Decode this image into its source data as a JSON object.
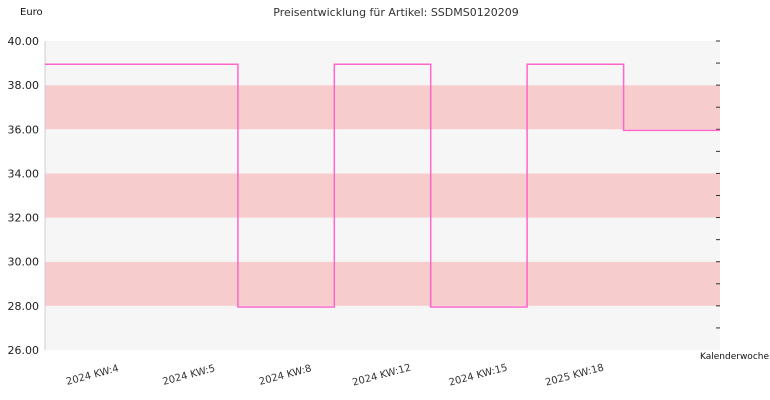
{
  "chart_data": {
    "type": "line",
    "step": true,
    "title": "Preisentwicklung für Artikel: SSDMS0120209",
    "ylabel": "Euro",
    "xlabel": "Kalenderwoche",
    "ylim": [
      26,
      40
    ],
    "yticks": [
      26,
      28,
      30,
      32,
      34,
      36,
      38,
      40
    ],
    "ytick_labels": [
      "26.00",
      "28.00",
      "30.00",
      "32.00",
      "34.00",
      "36.00",
      "38.00",
      "40.00"
    ],
    "xlim": [
      0,
      7
    ],
    "xticks": [
      {
        "label": "2024 KW:4",
        "x": 0.5
      },
      {
        "label": "2024 KW:5",
        "x": 1.5
      },
      {
        "label": "2024 KW:8",
        "x": 2.5
      },
      {
        "label": "2024 KW:12",
        "x": 3.5
      },
      {
        "label": "2024 KW:15",
        "x": 4.5
      },
      {
        "label": "2025 KW:18",
        "x": 5.5
      }
    ],
    "series": [
      {
        "color": "#ff66cc",
        "x": [
          0,
          2,
          2,
          3,
          3,
          4,
          4,
          5,
          5,
          6,
          6,
          7
        ],
        "values": [
          38.95,
          38.95,
          27.95,
          27.95,
          38.95,
          38.95,
          27.95,
          27.95,
          38.95,
          38.95,
          35.95,
          35.95
        ]
      }
    ],
    "grid": false,
    "background_colors": [
      "#f6f6f6",
      "#f7cccc"
    ],
    "band_step": 2
  }
}
